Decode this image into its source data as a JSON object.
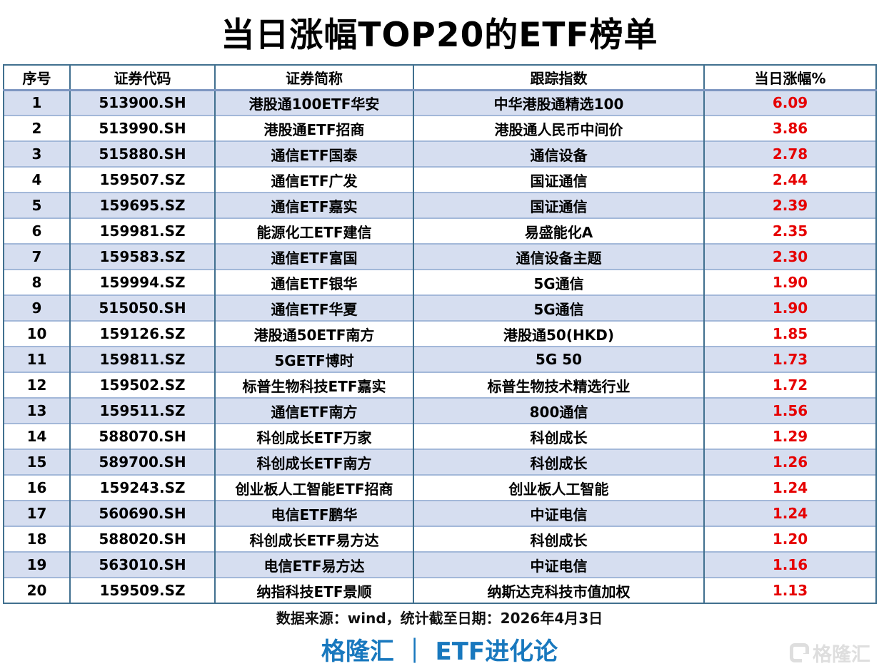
{
  "title": "当日涨幅TOP20的ETF榜单",
  "chart_data": {
    "type": "table",
    "title": "当日涨幅TOP20的ETF榜单",
    "columns": [
      "序号",
      "证券代码",
      "证券简称",
      "跟踪指数",
      "当日涨幅%"
    ],
    "rows": [
      [
        "1",
        "513900.SH",
        "港股通100ETF华安",
        "中华港股通精选100",
        "6.09"
      ],
      [
        "2",
        "513990.SH",
        "港股通ETF招商",
        "港股通人民币中间价",
        "3.86"
      ],
      [
        "3",
        "515880.SH",
        "通信ETF国泰",
        "通信设备",
        "2.78"
      ],
      [
        "4",
        "159507.SZ",
        "通信ETF广发",
        "国证通信",
        "2.44"
      ],
      [
        "5",
        "159695.SZ",
        "通信ETF嘉实",
        "国证通信",
        "2.39"
      ],
      [
        "6",
        "159981.SZ",
        "能源化工ETF建信",
        "易盛能化A",
        "2.35"
      ],
      [
        "7",
        "159583.SZ",
        "通信ETF富国",
        "通信设备主题",
        "2.30"
      ],
      [
        "8",
        "159994.SZ",
        "通信ETF银华",
        "5G通信",
        "1.90"
      ],
      [
        "9",
        "515050.SH",
        "通信ETF华夏",
        "5G通信",
        "1.90"
      ],
      [
        "10",
        "159126.SZ",
        "港股通50ETF南方",
        "港股通50(HKD)",
        "1.85"
      ],
      [
        "11",
        "159811.SZ",
        "5GETF博时",
        "5G 50",
        "1.73"
      ],
      [
        "12",
        "159502.SZ",
        "标普生物科技ETF嘉实",
        "标普生物技术精选行业",
        "1.72"
      ],
      [
        "13",
        "159511.SZ",
        "通信ETF南方",
        "800通信",
        "1.56"
      ],
      [
        "14",
        "588070.SH",
        "科创成长ETF万家",
        "科创成长",
        "1.29"
      ],
      [
        "15",
        "589700.SH",
        "科创成长ETF南方",
        "科创成长",
        "1.26"
      ],
      [
        "16",
        "159243.SZ",
        "创业板人工智能ETF招商",
        "创业板人工智能",
        "1.24"
      ],
      [
        "17",
        "560690.SH",
        "电信ETF鹏华",
        "中证电信",
        "1.24"
      ],
      [
        "18",
        "588020.SH",
        "科创成长ETF易方达",
        "科创成长",
        "1.20"
      ],
      [
        "19",
        "563010.SH",
        "电信ETF易方达",
        "中证电信",
        "1.16"
      ],
      [
        "20",
        "159509.SZ",
        "纳指科技ETF景顺",
        "纳斯达克科技市值加权",
        "1.13"
      ]
    ],
    "layout": {
      "banded_rows": true,
      "band_on": "odd"
    }
  },
  "footer": {
    "source_note": "数据来源：wind，统计截至日期：2026年4月3日",
    "brand": "格隆汇 ｜ ETF进化论",
    "watermark_text": "格隆汇"
  },
  "colors": {
    "band": "#d6def0",
    "up_red": "#e60000",
    "brand_blue": "#1878be",
    "vertical_border": "#41708f",
    "horizontal_border": "#a3b8d9",
    "watermark_gray": "#dedede"
  }
}
